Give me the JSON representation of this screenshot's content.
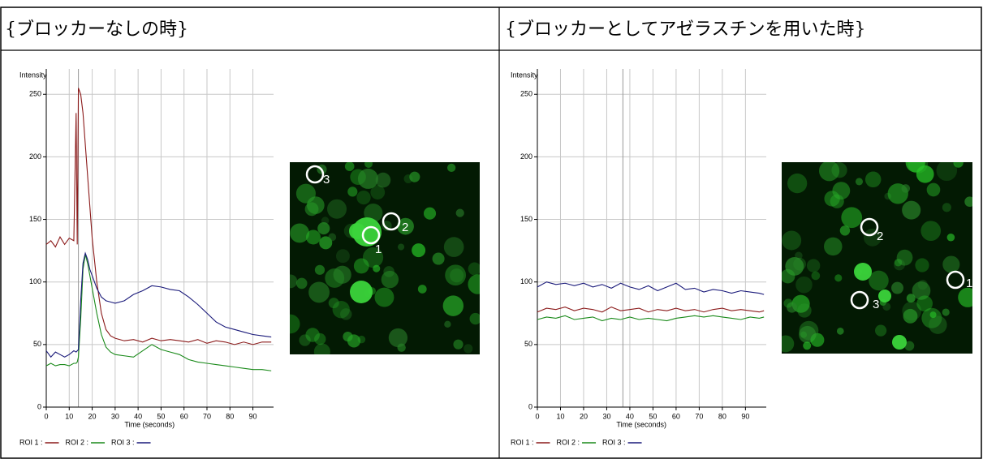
{
  "table": {
    "headers": [
      "{ブロッカーなしの時}",
      "{ブロッカーとしてアゼラスチンを用いた時}"
    ]
  },
  "images": [
    {
      "roi_labels": [
        "1",
        "2",
        "3"
      ]
    },
    {
      "roi_labels": [
        "1",
        "2",
        "3"
      ]
    }
  ],
  "chart_data": [
    {
      "type": "line",
      "y_label": "Intensity",
      "x_label": "Time (seconds)",
      "x": [
        0,
        2,
        4,
        6,
        8,
        10,
        12,
        13,
        13.5,
        14,
        15,
        16,
        17,
        18,
        19,
        20,
        22,
        24,
        26,
        28,
        30,
        34,
        38,
        42,
        46,
        50,
        54,
        58,
        62,
        66,
        70,
        74,
        78,
        82,
        86,
        90,
        94,
        98
      ],
      "series": [
        {
          "name": "ROI 1 :",
          "color": "#8b1a1a",
          "values": [
            130,
            133,
            128,
            136,
            130,
            135,
            133,
            235,
            130,
            255,
            250,
            235,
            210,
            185,
            160,
            135,
            100,
            75,
            62,
            57,
            55,
            53,
            54,
            52,
            55,
            53,
            54,
            53,
            52,
            54,
            51,
            53,
            52,
            50,
            52,
            50,
            52,
            52
          ]
        },
        {
          "name": "ROI 2 :",
          "color": "#1a8a1a",
          "values": [
            33,
            35,
            33,
            34,
            34,
            33,
            35,
            35,
            36,
            40,
            70,
            110,
            122,
            115,
            105,
            95,
            75,
            58,
            48,
            44,
            42,
            41,
            40,
            45,
            50,
            46,
            44,
            42,
            38,
            36,
            35,
            34,
            33,
            32,
            31,
            30,
            30,
            29
          ]
        },
        {
          "name": "ROI 3 :",
          "color": "#1a1a7a",
          "values": [
            45,
            40,
            44,
            42,
            40,
            42,
            45,
            44,
            45,
            46,
            85,
            115,
            123,
            118,
            110,
            105,
            95,
            88,
            85,
            84,
            83,
            85,
            90,
            93,
            97,
            96,
            94,
            93,
            88,
            82,
            75,
            68,
            64,
            62,
            60,
            58,
            57,
            56
          ]
        }
      ],
      "xlim": [
        0,
        99
      ],
      "ylim": [
        0,
        256
      ],
      "xticks": [
        0,
        10,
        20,
        30,
        40,
        50,
        60,
        70,
        80,
        90
      ],
      "yticks": [
        0,
        50,
        100,
        150,
        200,
        250
      ],
      "grid": true,
      "cursor_x": 14
    },
    {
      "type": "line",
      "y_label": "Intensity",
      "x_label": "Time (seconds)",
      "x": [
        0,
        4,
        8,
        12,
        16,
        20,
        24,
        28,
        32,
        36,
        40,
        44,
        48,
        52,
        56,
        60,
        64,
        68,
        72,
        76,
        80,
        84,
        88,
        92,
        96,
        98
      ],
      "series": [
        {
          "name": "ROI 1 :",
          "color": "#8b1a1a",
          "values": [
            76,
            79,
            78,
            80,
            77,
            79,
            78,
            76,
            80,
            77,
            78,
            79,
            76,
            78,
            77,
            79,
            77,
            78,
            76,
            78,
            79,
            77,
            78,
            77,
            76,
            77
          ]
        },
        {
          "name": "ROI 2 :",
          "color": "#1a8a1a",
          "values": [
            70,
            72,
            71,
            73,
            70,
            71,
            72,
            69,
            71,
            70,
            72,
            70,
            71,
            70,
            69,
            71,
            72,
            73,
            72,
            73,
            72,
            71,
            70,
            72,
            71,
            72
          ]
        },
        {
          "name": "ROI 3 :",
          "color": "#1a1a7a",
          "values": [
            96,
            100,
            98,
            99,
            97,
            99,
            96,
            98,
            95,
            99,
            96,
            94,
            97,
            93,
            96,
            99,
            94,
            95,
            92,
            94,
            93,
            91,
            93,
            92,
            91,
            90
          ]
        }
      ],
      "xlim": [
        0,
        99
      ],
      "ylim": [
        0,
        256
      ],
      "xticks": [
        0,
        10,
        20,
        30,
        40,
        50,
        60,
        70,
        80,
        90
      ],
      "yticks": [
        0,
        50,
        100,
        150,
        200,
        250
      ],
      "grid": true,
      "cursor_x": 37
    }
  ]
}
